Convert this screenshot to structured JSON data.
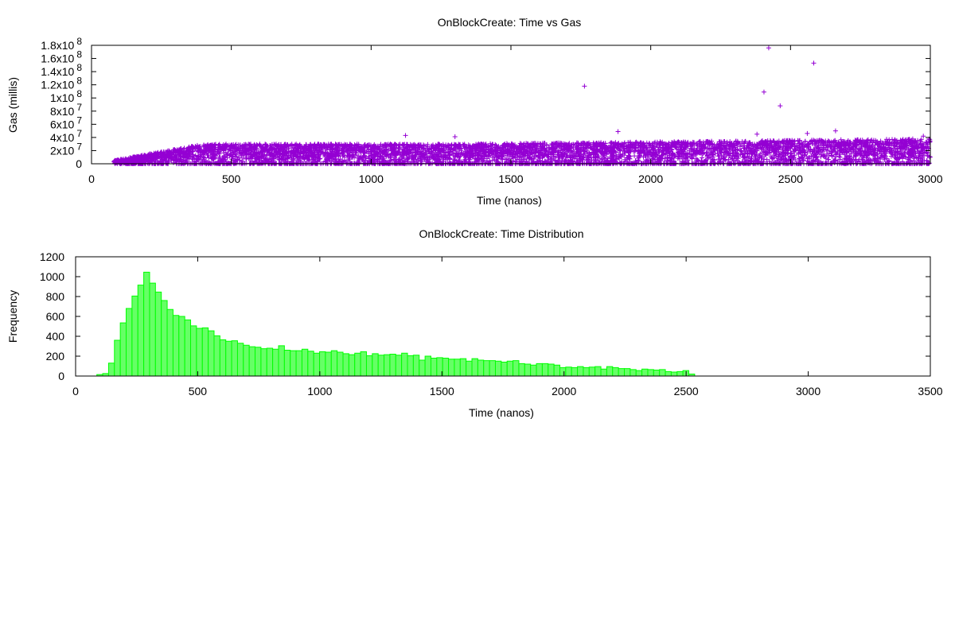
{
  "chart_data": [
    {
      "type": "scatter",
      "title": "OnBlockCreate: Time vs Gas",
      "xlabel": "Time (nanos)",
      "ylabel": "Gas (millis)",
      "xlim": [
        0,
        3000
      ],
      "ylim": [
        0,
        180000000
      ],
      "x_ticks": [
        0,
        500,
        1000,
        1500,
        2000,
        2500,
        3000
      ],
      "y_ticks": [
        {
          "value": 0,
          "mantissa": "0",
          "exp": ""
        },
        {
          "value": 20000000,
          "mantissa": "2x10",
          "exp": "7"
        },
        {
          "value": 40000000,
          "mantissa": "4x10",
          "exp": "7"
        },
        {
          "value": 60000000,
          "mantissa": "6x10",
          "exp": "7"
        },
        {
          "value": 80000000,
          "mantissa": "8x10",
          "exp": "7"
        },
        {
          "value": 100000000,
          "mantissa": "1x10",
          "exp": "8"
        },
        {
          "value": 120000000,
          "mantissa": "1.2x10",
          "exp": "8"
        },
        {
          "value": 140000000,
          "mantissa": "1.4x10",
          "exp": "8"
        },
        {
          "value": 160000000,
          "mantissa": "1.6x10",
          "exp": "8"
        },
        {
          "value": 180000000,
          "mantissa": "1.8x10",
          "exp": "8"
        }
      ],
      "marker": "+",
      "color": "#9400d3",
      "density_band": {
        "x_start": 80,
        "x_end": 3000,
        "y_low": 0,
        "y_high_at_start": 5000000,
        "y_high_plateau": 30000000,
        "x_plateau": 400
      },
      "outliers": [
        {
          "x": 1763,
          "y": 118000000
        },
        {
          "x": 2422,
          "y": 176000000
        },
        {
          "x": 2405,
          "y": 109000000
        },
        {
          "x": 2463,
          "y": 88000000
        },
        {
          "x": 2583,
          "y": 153000000
        },
        {
          "x": 1883,
          "y": 49000000
        },
        {
          "x": 2661,
          "y": 50000000
        },
        {
          "x": 1123,
          "y": 43000000
        },
        {
          "x": 2975,
          "y": 42000000
        },
        {
          "x": 1300,
          "y": 41000000
        },
        {
          "x": 2380,
          "y": 45000000
        },
        {
          "x": 2560,
          "y": 46000000
        }
      ],
      "grid": false
    },
    {
      "type": "bar",
      "title": "OnBlockCreate: Time Distribution",
      "xlabel": "Time (nanos)",
      "ylabel": "Frequency",
      "xlim": [
        0,
        3500
      ],
      "ylim": [
        0,
        1200
      ],
      "x_ticks": [
        0,
        500,
        1000,
        1500,
        2000,
        2500,
        3000,
        3500
      ],
      "y_ticks": [
        0,
        200,
        400,
        600,
        800,
        1000,
        1200
      ],
      "bin_start": 87,
      "bin_width": 24,
      "values": [
        15,
        25,
        130,
        360,
        535,
        680,
        805,
        915,
        1045,
        935,
        845,
        760,
        670,
        610,
        600,
        565,
        505,
        480,
        485,
        455,
        405,
        365,
        350,
        355,
        330,
        310,
        295,
        290,
        275,
        280,
        270,
        305,
        260,
        255,
        255,
        270,
        250,
        230,
        245,
        240,
        255,
        240,
        225,
        215,
        230,
        245,
        205,
        225,
        210,
        215,
        220,
        210,
        230,
        205,
        210,
        160,
        200,
        180,
        185,
        180,
        170,
        170,
        175,
        150,
        175,
        160,
        155,
        155,
        150,
        140,
        150,
        155,
        125,
        120,
        110,
        125,
        125,
        120,
        110,
        85,
        90,
        85,
        95,
        85,
        90,
        95,
        70,
        95,
        85,
        75,
        75,
        65,
        55,
        70,
        65,
        60,
        65,
        45,
        40,
        45,
        55,
        20
      ],
      "color": "#00ff00",
      "grid": false
    }
  ]
}
